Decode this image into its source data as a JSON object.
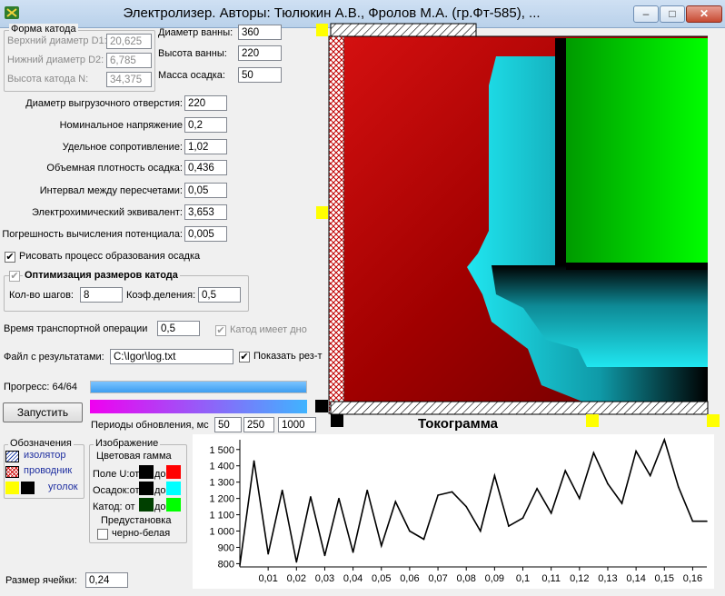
{
  "window": {
    "title": "Электролизер. Авторы: Тюлюкин А.В., Фролов М.А. (гр.Фт-585), ..."
  },
  "cathode_shape": {
    "title": "Форма катода",
    "d1_label": "Верхний диаметр D1:",
    "d1_value": "20,625",
    "d2_label": "Нижний диаметр D2:",
    "d2_value": "6,785",
    "height_label": "Высота катода N:",
    "height_value": "34,375"
  },
  "bath": {
    "diameter_label": "Диаметр ванны:",
    "diameter_value": "360",
    "height_label": "Высота ванны:",
    "height_value": "220",
    "deposit_label": "Масса осадка:",
    "deposit_value": "50"
  },
  "params": [
    {
      "label": "Диаметр выгрузочного отверстия:",
      "value": "220"
    },
    {
      "label": "Номинальное напряжение",
      "value": "0,2"
    },
    {
      "label": "Удельное сопротивление:",
      "value": "1,02"
    },
    {
      "label": "Объемная плотность осадка:",
      "value": "0,436"
    },
    {
      "label": "Интервал между пересчетами:",
      "value": "0,05"
    },
    {
      "label": "Электрохимический эквивалент:",
      "value": "3,653"
    },
    {
      "label": "Погрешность вычисления потенциала:",
      "value": "0,005"
    }
  ],
  "draw_process": {
    "label": "Рисовать процесс образования осадка",
    "checked": "✔"
  },
  "optimization": {
    "title": "Оптимизация размеров катода",
    "checked": "✔",
    "steps_label": "Кол-во шагов:",
    "steps_value": "8",
    "coef_label": "Коэф.деления:",
    "coef_value": "0,5"
  },
  "transport": {
    "label": "Время транспортной операции",
    "value": "0,5",
    "bottom_label": "Катод имеет дно",
    "bottom_checked": "✔"
  },
  "results": {
    "label": "Файл с результатами:",
    "path": "C:\\Igor\\log.txt",
    "show_label": "Показать рез-т",
    "show_checked": "✔"
  },
  "progress": {
    "label": "Прогресс: 64/64",
    "fraction": 1.0,
    "color": "#3d9df0"
  },
  "run_button": "Запустить",
  "refresh": {
    "label": "Периоды обновления, мс",
    "v1": "50",
    "v2": "250",
    "v3": "1000"
  },
  "legend": {
    "title": "Обозначения",
    "insulator": "изолятор",
    "conductor": "проводник",
    "corner": "уголок"
  },
  "image_group": {
    "title": "Изображение",
    "gamma_title": "Цветовая гамма",
    "field_label": "Поле U:от",
    "field_to": "до",
    "field_from_color": "#000000",
    "field_to_color": "#ff0000",
    "deposit_label": "Осадок:от",
    "deposit_to": "до",
    "deposit_from_color": "#000000",
    "deposit_to_color": "#00ffff",
    "cathode_label": "Катод:  от",
    "cathode_to": "до",
    "cathode_from_color": "#004000",
    "cathode_to_color": "#00ff00",
    "preset_label": "Предустановка",
    "bw_label": "черно-белая"
  },
  "cell_size": {
    "label": "Размер ячейки:",
    "value": "0,24"
  },
  "chart_data": {
    "type": "line",
    "title": "Токограмма",
    "xlabel": "",
    "ylabel": "",
    "xlim": [
      0.0,
      0.165
    ],
    "ylim": [
      780,
      1560
    ],
    "x_ticks": [
      "0,01",
      "0,02",
      "0,03",
      "0,04",
      "0,05",
      "0,06",
      "0,07",
      "0,08",
      "0,09",
      "0,1",
      "0,11",
      "0,12",
      "0,13",
      "0,14",
      "0,15",
      "0,16"
    ],
    "x_tick_values": [
      0.01,
      0.02,
      0.03,
      0.04,
      0.05,
      0.06,
      0.07,
      0.08,
      0.09,
      0.1,
      0.11,
      0.12,
      0.13,
      0.14,
      0.15,
      0.16
    ],
    "y_ticks": [
      "800",
      "900",
      "1 000",
      "1 100",
      "1 200",
      "1 300",
      "1 400",
      "1 500"
    ],
    "y_tick_values": [
      800,
      900,
      1000,
      1100,
      1200,
      1300,
      1400,
      1500
    ],
    "grid": false,
    "series": [
      {
        "x": [
          0.0,
          0.005,
          0.01,
          0.015,
          0.02,
          0.025,
          0.03,
          0.035,
          0.04,
          0.045,
          0.05,
          0.055,
          0.06,
          0.065,
          0.07,
          0.075,
          0.08,
          0.085,
          0.09,
          0.095,
          0.1,
          0.105,
          0.11,
          0.115,
          0.12,
          0.125,
          0.13,
          0.135,
          0.14,
          0.145,
          0.15,
          0.155,
          0.16,
          0.165
        ],
        "y": [
          790,
          1430,
          860,
          1250,
          810,
          1210,
          850,
          1200,
          870,
          1250,
          910,
          1180,
          1000,
          950,
          1220,
          1240,
          1150,
          1000,
          1340,
          1030,
          1080,
          1260,
          1110,
          1370,
          1200,
          1480,
          1290,
          1170,
          1490,
          1340,
          1560,
          1270,
          1060,
          1060
        ]
      }
    ]
  }
}
